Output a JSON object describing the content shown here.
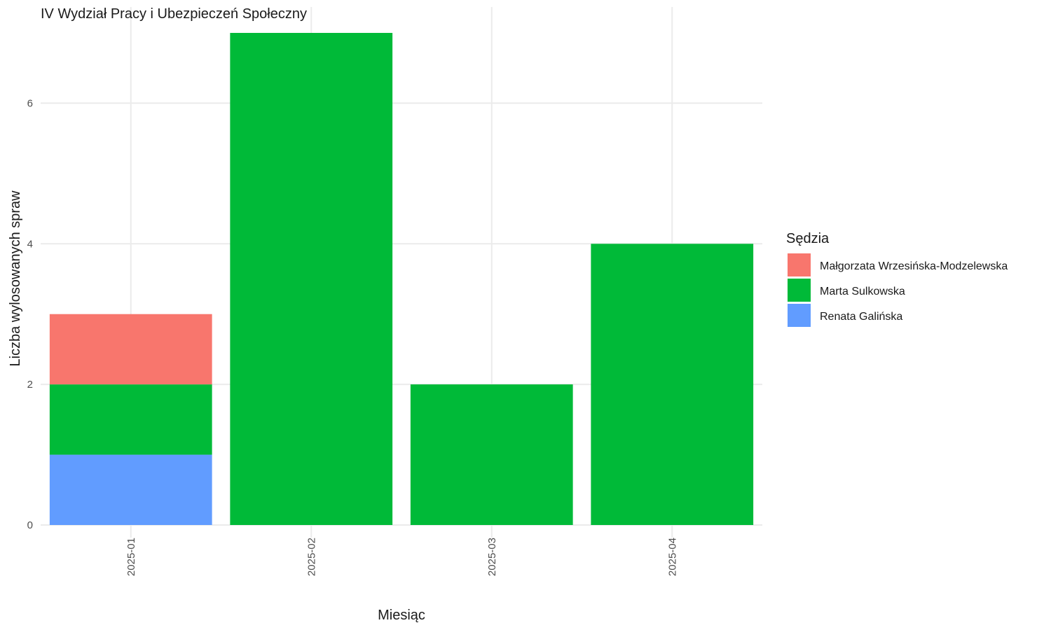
{
  "chart_data": {
    "type": "bar",
    "stacked": true,
    "title": "IV Wydział Pracy i Ubezpieczeń Społeczny",
    "xlabel": "Miesiąc",
    "ylabel": "Liczba wylosowanych spraw",
    "categories": [
      "2025-01",
      "2025-02",
      "2025-03",
      "2025-04"
    ],
    "yticks": [
      0,
      2,
      4,
      6
    ],
    "ylim": [
      0,
      7
    ],
    "legend": {
      "title": "Sędzia",
      "position": "right"
    },
    "series": [
      {
        "name": "Małgorzata Wrzesińska-Modzelewska",
        "color": "#F8766D",
        "values": [
          1,
          0,
          0,
          0
        ]
      },
      {
        "name": "Marta Sulkowska",
        "color": "#00BA38",
        "values": [
          1,
          7,
          2,
          4
        ]
      },
      {
        "name": "Renata Galińska",
        "color": "#619CFF",
        "values": [
          1,
          0,
          0,
          0
        ]
      }
    ],
    "stack_order_bottom_to_top": [
      "Renata Galińska",
      "Marta Sulkowska",
      "Małgorzata Wrzesińska-Modzelewska"
    ],
    "grid": true
  }
}
